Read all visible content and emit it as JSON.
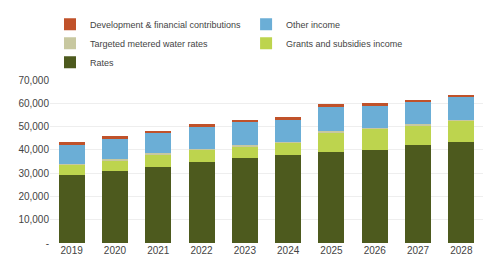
{
  "chart_data": {
    "type": "bar",
    "stacked": true,
    "categories": [
      "2019",
      "2020",
      "2021",
      "2022",
      "2023",
      "2024",
      "2025",
      "2026",
      "2027",
      "2028"
    ],
    "series": [
      {
        "name": "Rates",
        "color": "#4d5a1e",
        "values": [
          29000,
          31000,
          32500,
          35000,
          36500,
          38000,
          39000,
          40000,
          42000,
          43500
        ]
      },
      {
        "name": "Grants and subsidies income",
        "color": "#bdd44e",
        "values": [
          4500,
          4500,
          5500,
          5000,
          5000,
          5000,
          8500,
          9000,
          8500,
          9000
        ]
      },
      {
        "name": "Targeted metered water rates",
        "color": "#c8c8a0",
        "values": [
          500,
          500,
          500,
          500,
          500,
          500,
          500,
          500,
          500,
          500
        ]
      },
      {
        "name": "Other income",
        "color": "#6baed6",
        "values": [
          8500,
          9000,
          9000,
          9500,
          10000,
          9500,
          10500,
          9500,
          9500,
          9500
        ]
      },
      {
        "name": "Development & financial contributions",
        "color": "#c0522a",
        "values": [
          700,
          800,
          800,
          900,
          1000,
          1200,
          1300,
          1000,
          1000,
          1200
        ]
      }
    ],
    "ylim": [
      0,
      70000
    ],
    "yticks": [
      {
        "value": 0,
        "label": "-"
      },
      {
        "value": 10000,
        "label": "10,000"
      },
      {
        "value": 20000,
        "label": "20,000"
      },
      {
        "value": 30000,
        "label": "30,000"
      },
      {
        "value": 40000,
        "label": "40,000"
      },
      {
        "value": 50000,
        "label": "50,000"
      },
      {
        "value": 60000,
        "label": "60,000"
      },
      {
        "value": 70000,
        "label": "70,000"
      }
    ],
    "grid": true,
    "legend": "top"
  }
}
